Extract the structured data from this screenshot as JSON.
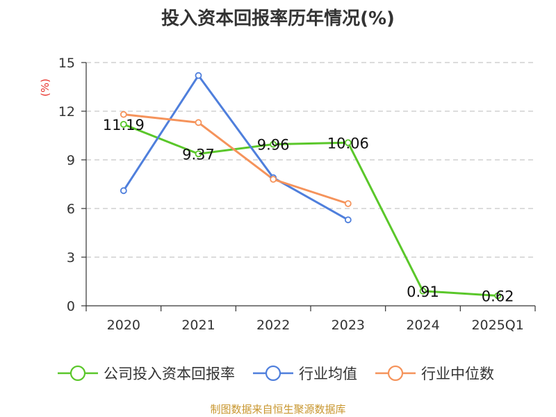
{
  "chart_data": {
    "type": "line",
    "title": "投入资本回报率历年情况(%)",
    "ylabel": "(%)",
    "categories": [
      "2020",
      "2021",
      "2022",
      "2023",
      "2024",
      "2025Q1"
    ],
    "ylim": [
      0,
      15
    ],
    "yticks": [
      0,
      3,
      6,
      9,
      12,
      15
    ],
    "grid": true,
    "legend_position": "bottom",
    "series": [
      {
        "name": "公司投入资本回报率",
        "color": "#5ac72a",
        "values": [
          11.19,
          9.37,
          9.96,
          10.06,
          0.91,
          0.62
        ],
        "show_labels": true
      },
      {
        "name": "行业均值",
        "color": "#4f7fdc",
        "values": [
          7.1,
          14.2,
          7.9,
          5.3,
          null,
          null
        ],
        "show_labels": false
      },
      {
        "name": "行业中位数",
        "color": "#f5935b",
        "values": [
          11.8,
          11.3,
          7.8,
          6.3,
          null,
          null
        ],
        "show_labels": false
      }
    ]
  },
  "source": "制图数据来自恒生聚源数据库"
}
